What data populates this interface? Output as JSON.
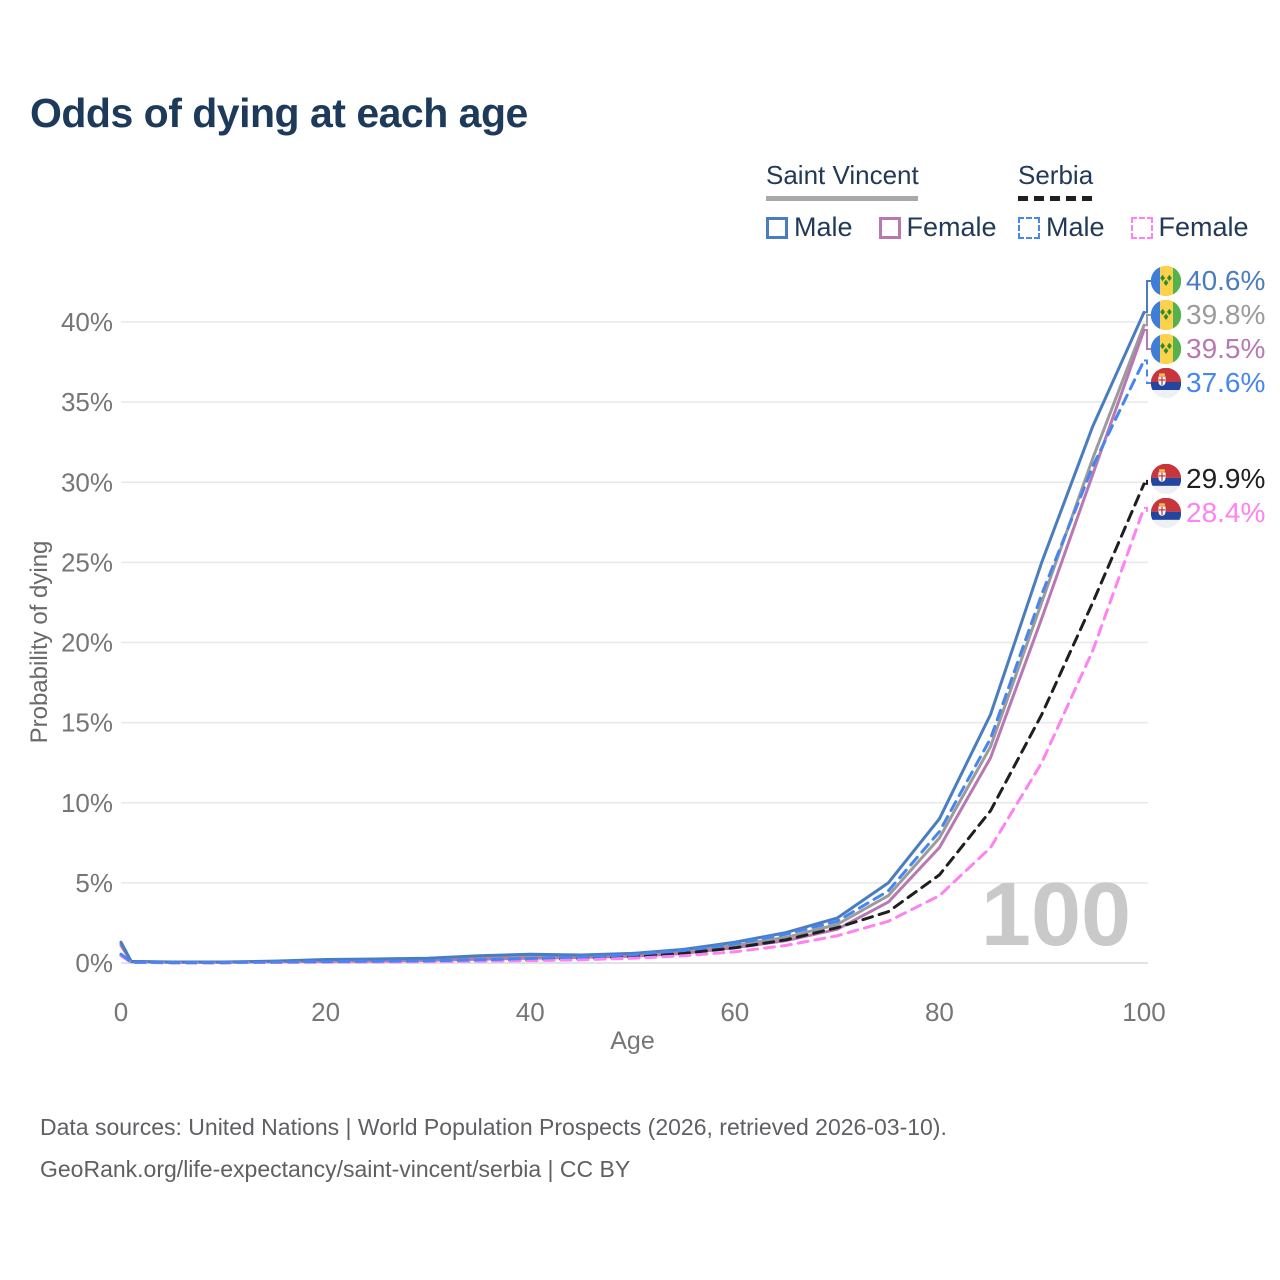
{
  "page": {
    "title": "Odds of dying at each age",
    "watermark": "100"
  },
  "legend": {
    "groups": [
      {
        "label": "Saint Vincent",
        "line_style": "solid",
        "line_color": "#a9a9a9",
        "items": [
          {
            "label": "Male",
            "color": "#4a7dbf",
            "dash": false
          },
          {
            "label": "Female",
            "color": "#b879b3",
            "dash": false
          }
        ]
      },
      {
        "label": "Serbia",
        "line_style": "dashed",
        "line_color": "#1f1f1f",
        "items": [
          {
            "label": "Male",
            "color": "#4786f0",
            "dash": true
          },
          {
            "label": "Female",
            "color": "#ff82f2",
            "dash": true
          }
        ]
      }
    ]
  },
  "footer": {
    "line1": "Data sources: United Nations | World Population Prospects (2026, retrieved 2026-03-10).",
    "line2": "GeoRank.org/life-expectancy/saint-vincent/serbia | CC BY"
  },
  "chart_data": {
    "type": "line",
    "title": "Odds of dying at each age",
    "xlabel": "Age",
    "ylabel": "Probability of dying",
    "xlim": [
      0,
      100
    ],
    "ylim": [
      0,
      40
    ],
    "xticks": [
      0,
      20,
      40,
      60,
      80,
      100
    ],
    "yticks": [
      0,
      5,
      10,
      15,
      20,
      25,
      30,
      35,
      40
    ],
    "ytick_suffix": "%",
    "grid": "horizontal",
    "legend_position": "top-right",
    "x": [
      0,
      1,
      5,
      10,
      15,
      20,
      25,
      30,
      35,
      40,
      45,
      50,
      55,
      60,
      65,
      70,
      75,
      80,
      85,
      90,
      95,
      100
    ],
    "series": [
      {
        "id": "sv_total",
        "name": "Saint Vincent (both sexes)",
        "color": "#9b9b9b",
        "dash": false,
        "flag": "saint-vincent",
        "end_label": "39.8%",
        "values": [
          1.2,
          0.09,
          0.05,
          0.05,
          0.1,
          0.16,
          0.18,
          0.22,
          0.33,
          0.42,
          0.42,
          0.5,
          0.72,
          1.1,
          1.6,
          2.4,
          4.2,
          7.8,
          13.5,
          22.5,
          31.5,
          39.8
        ]
      },
      {
        "id": "sv_female",
        "name": "Saint Vincent Female",
        "color": "#b879b3",
        "dash": false,
        "flag": "saint-vincent",
        "end_label": "39.5%",
        "values": [
          1.1,
          0.08,
          0.05,
          0.05,
          0.08,
          0.1,
          0.12,
          0.16,
          0.24,
          0.3,
          0.35,
          0.42,
          0.6,
          0.95,
          1.4,
          2.1,
          3.8,
          7.2,
          12.8,
          21.5,
          30.5,
          39.5
        ]
      },
      {
        "id": "sv_male",
        "name": "Saint Vincent Male",
        "color": "#4a7dbf",
        "dash": false,
        "flag": "saint-vincent",
        "end_label": "40.6%",
        "values": [
          1.3,
          0.1,
          0.06,
          0.06,
          0.12,
          0.22,
          0.25,
          0.3,
          0.45,
          0.55,
          0.5,
          0.6,
          0.85,
          1.3,
          1.9,
          2.8,
          5.0,
          9.0,
          15.5,
          25.0,
          33.5,
          40.6
        ]
      },
      {
        "id": "rs_total",
        "name": "Serbia (both sexes)",
        "color": "#1f1f1f",
        "dash": true,
        "flag": "serbia",
        "end_label": "29.9%",
        "values": [
          0.5,
          0.04,
          0.02,
          0.02,
          0.05,
          0.07,
          0.08,
          0.1,
          0.15,
          0.2,
          0.28,
          0.4,
          0.6,
          0.95,
          1.45,
          2.2,
          3.2,
          5.5,
          9.5,
          15.5,
          22.5,
          29.9
        ]
      },
      {
        "id": "rs_female",
        "name": "Serbia Female",
        "color": "#ff82f2",
        "dash": true,
        "flag": "serbia",
        "end_label": "28.4%",
        "values": [
          0.45,
          0.04,
          0.02,
          0.02,
          0.04,
          0.05,
          0.06,
          0.08,
          0.11,
          0.15,
          0.2,
          0.3,
          0.45,
          0.7,
          1.1,
          1.7,
          2.6,
          4.2,
          7.2,
          12.5,
          19.5,
          28.4
        ]
      },
      {
        "id": "rs_male",
        "name": "Serbia Male",
        "color": "#4786f0",
        "dash": true,
        "flag": "serbia",
        "end_label": "37.6%",
        "values": [
          0.55,
          0.05,
          0.03,
          0.03,
          0.06,
          0.09,
          0.11,
          0.14,
          0.2,
          0.28,
          0.38,
          0.52,
          0.78,
          1.2,
          1.8,
          2.6,
          4.5,
          8.2,
          14.0,
          23.0,
          31.0,
          37.6
        ]
      }
    ]
  }
}
